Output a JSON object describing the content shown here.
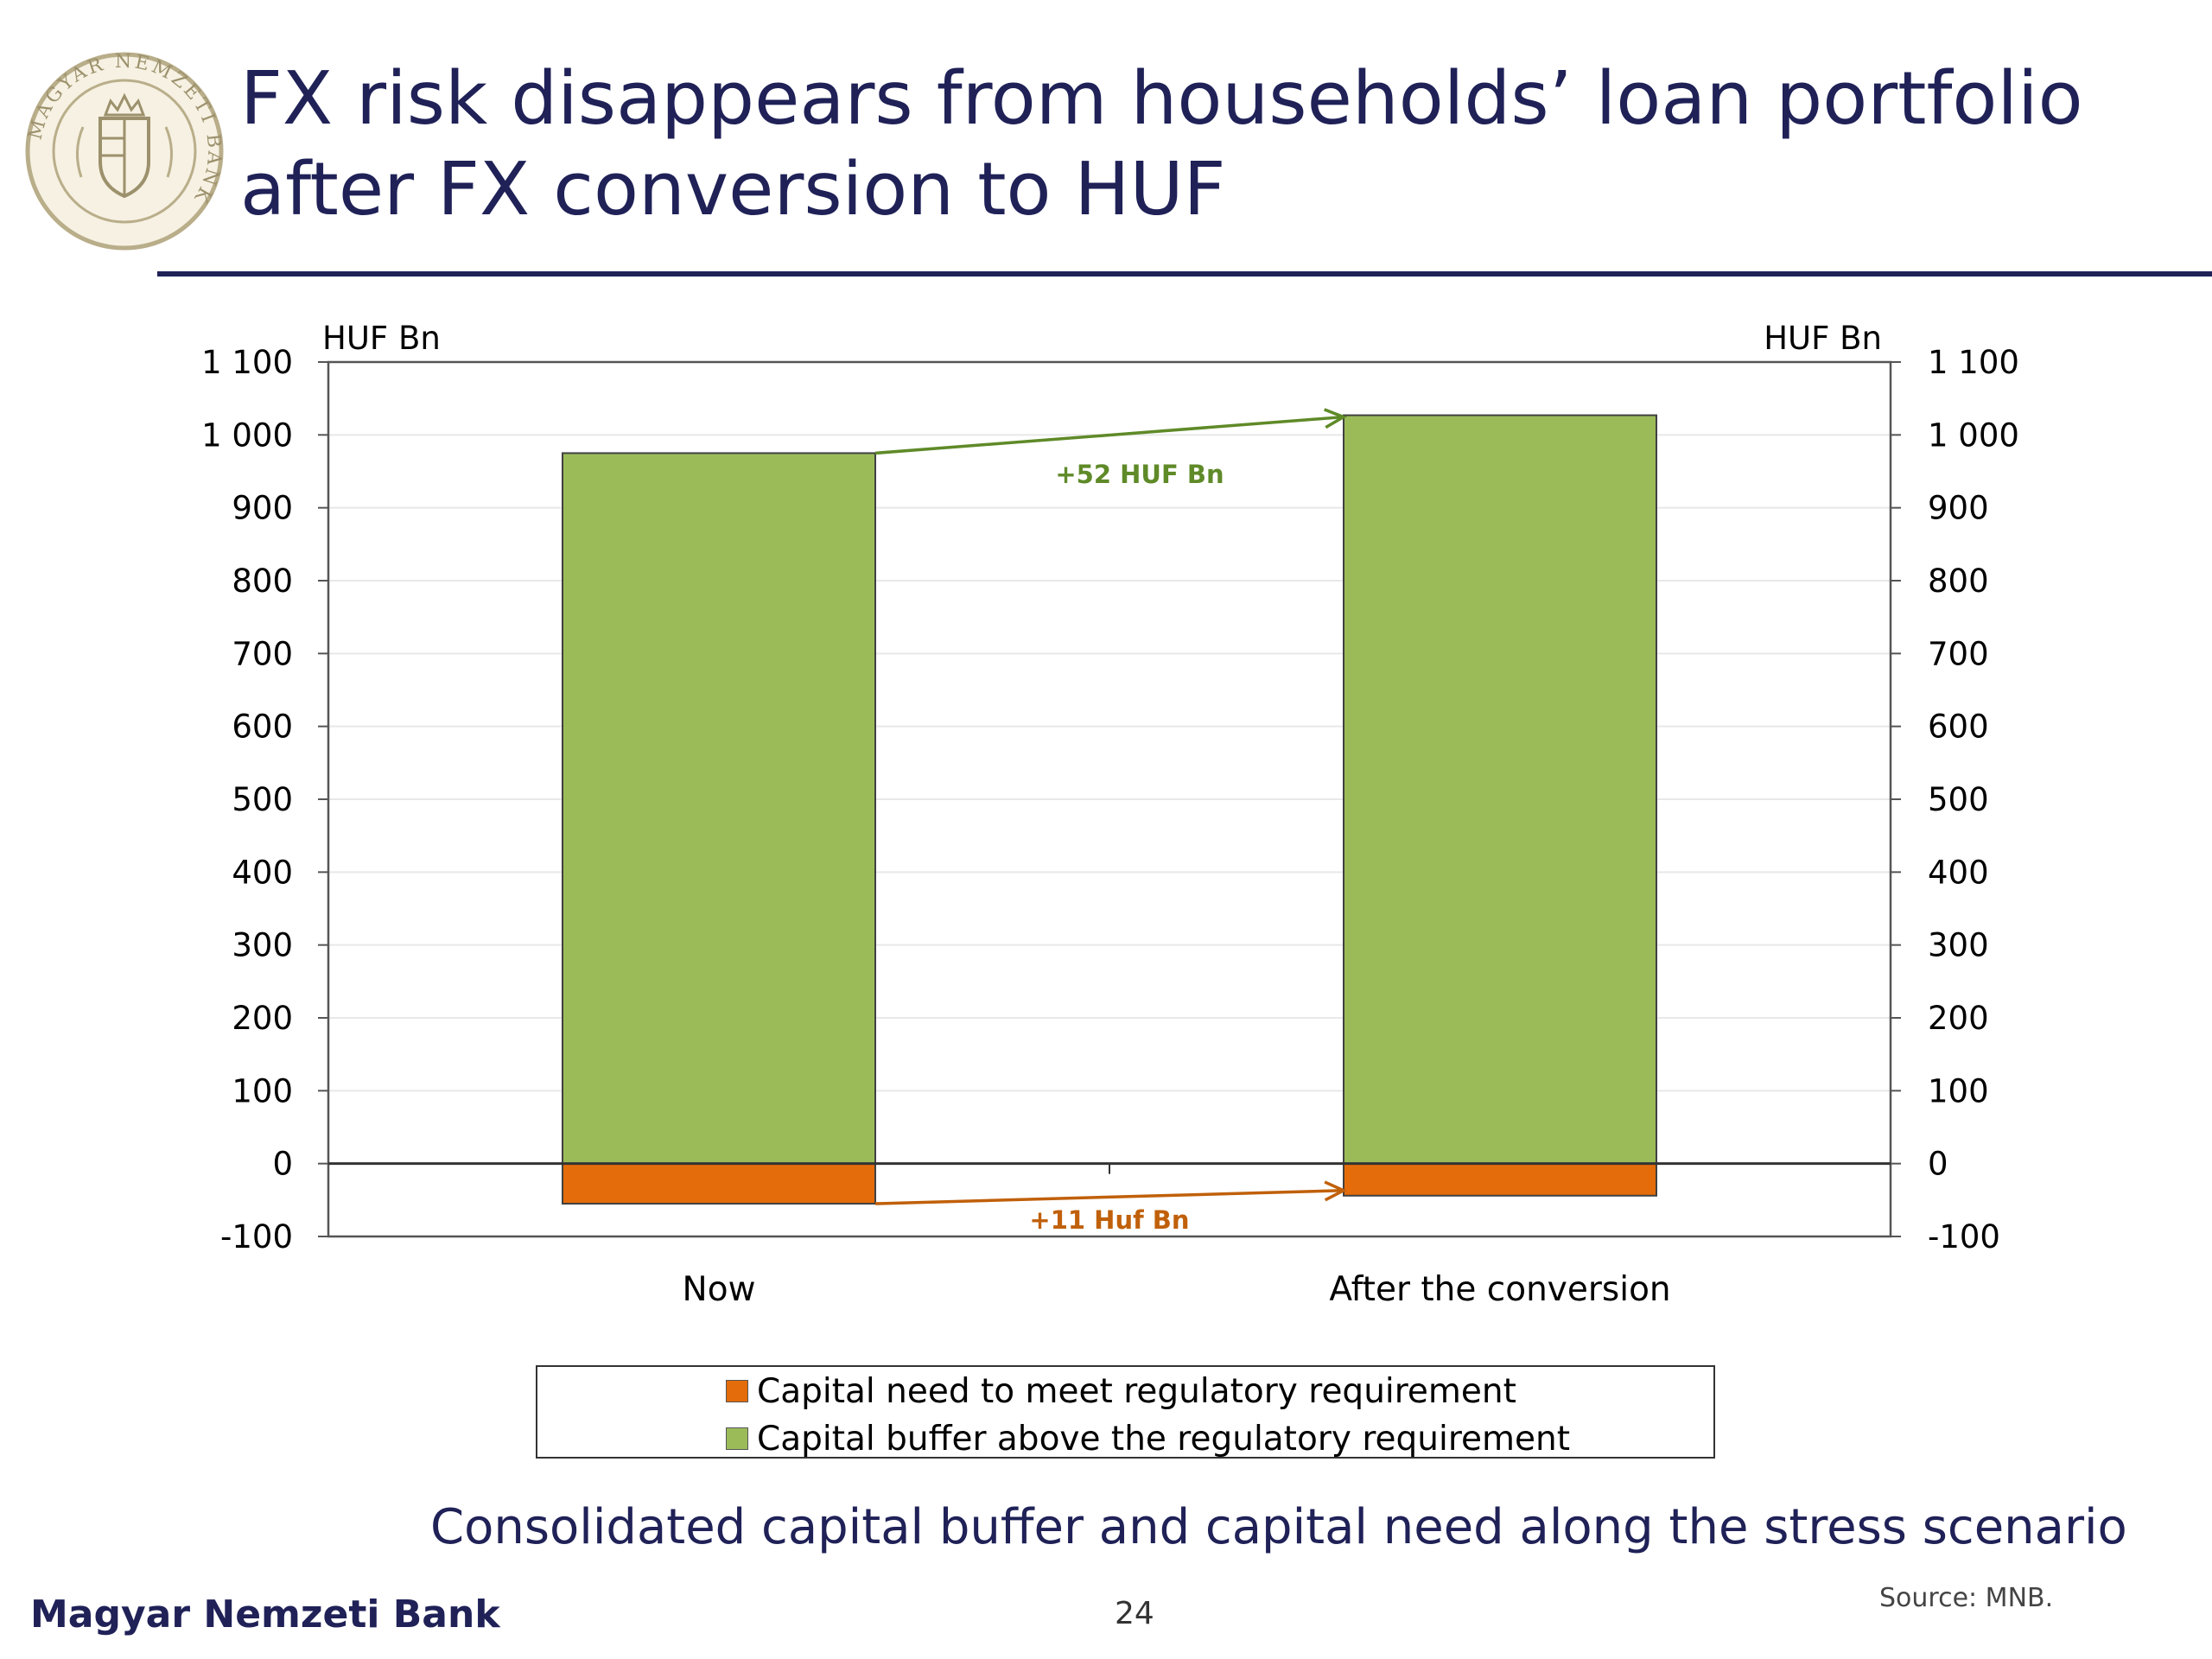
{
  "slide": {
    "title_lines": [
      "FX risk disappears from households’ loan portfolio",
      "after FX conversion to HUF"
    ],
    "subtitle": "Consolidated capital buffer and capital need along the stress scenario",
    "bank_name": "Magyar Nemzeti Bank",
    "page_number": "24",
    "source": "Source: MNB.",
    "logo_text": "MAGYAR NEMZETI BANK"
  },
  "colors": {
    "buffer": "#9bbb59",
    "need": "#e46c0a",
    "need_annotation": "#c0600a",
    "buffer_annotation": "#5f8a28",
    "title": "#1f2157"
  },
  "chart_data": {
    "type": "bar",
    "stacked": true,
    "categories": [
      "Now",
      "After the conversion"
    ],
    "series": [
      {
        "name": "Capital need to meet regulatory requirement",
        "values": [
          -55,
          -44
        ],
        "color": "#e46c0a"
      },
      {
        "name": "Capital buffer above the regulatory requirement",
        "values": [
          975,
          1027
        ],
        "color": "#9bbb59"
      }
    ],
    "ylim": [
      -100,
      1100
    ],
    "y_ticks": [
      -100,
      0,
      100,
      200,
      300,
      400,
      500,
      600,
      700,
      800,
      900,
      1000,
      1100
    ],
    "y_tick_labels": [
      "-100",
      "0",
      "100",
      "200",
      "300",
      "400",
      "500",
      "600",
      "700",
      "800",
      "900",
      "1 000",
      "1 100"
    ],
    "y_unit_left": "HUF Bn",
    "y_unit_right": "HUF Bn",
    "grid": true,
    "legend_position": "bottom",
    "annotations": [
      {
        "text": "+52 HUF Bn",
        "series": "Capital buffer above the regulatory requirement"
      },
      {
        "text": "+11 Huf Bn",
        "series": "Capital need to meet regulatory requirement"
      }
    ]
  }
}
